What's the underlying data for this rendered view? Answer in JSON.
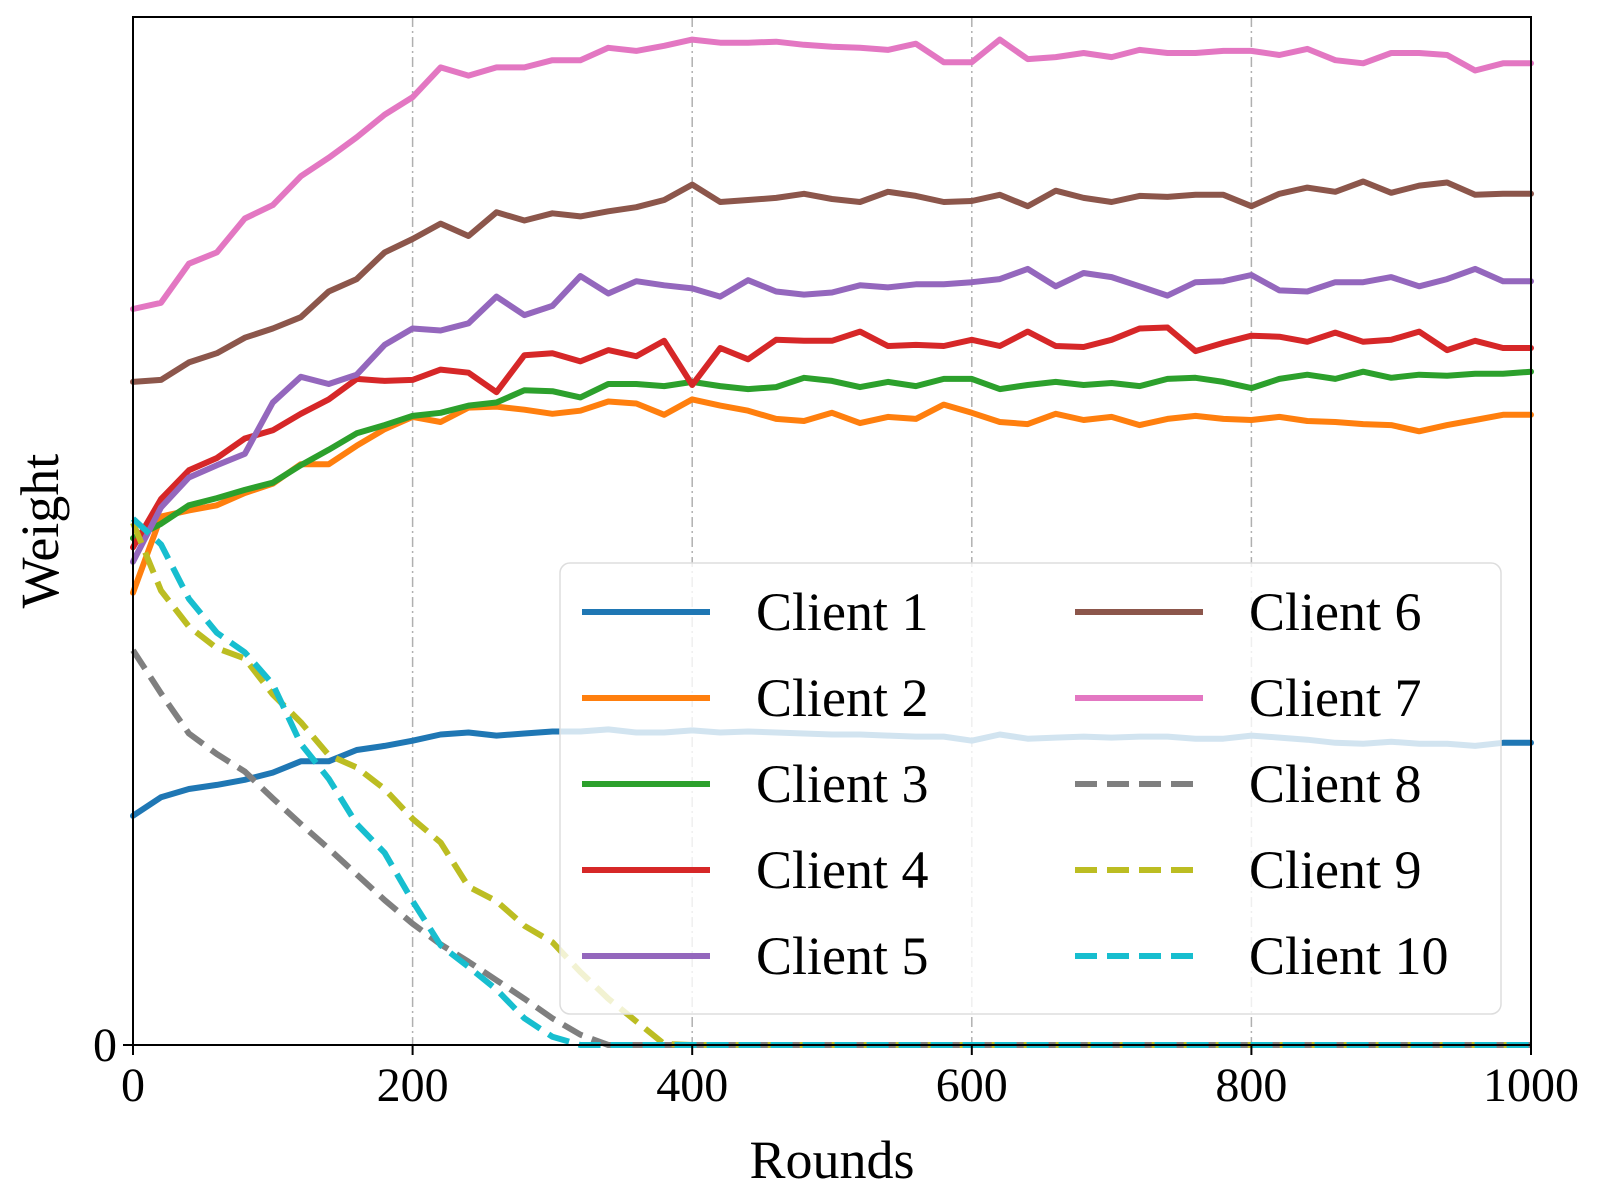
{
  "chart_data": {
    "type": "line",
    "title": "",
    "xlabel": "Rounds",
    "ylabel": "Weight",
    "xlim": [
      0,
      1000
    ],
    "ylim": [
      0,
      1
    ],
    "x_ticks": [
      0,
      200,
      400,
      600,
      800,
      1000
    ],
    "y_ticks": [
      0
    ],
    "grid": "vertical dash-dot",
    "legend_position": "lower-right",
    "legend_columns": 2,
    "x": [
      0,
      20,
      40,
      60,
      80,
      100,
      120,
      140,
      160,
      180,
      200,
      220,
      240,
      260,
      280,
      300,
      320,
      340,
      360,
      380,
      400,
      420,
      440,
      460,
      480,
      500,
      520,
      540,
      560,
      580,
      600,
      620,
      640,
      660,
      680,
      700,
      720,
      740,
      760,
      780,
      800,
      820,
      840,
      860,
      880,
      900,
      920,
      940,
      960,
      980,
      1000
    ],
    "series": [
      {
        "name": "Client 1",
        "color": "#1f77b4",
        "dash": "solid",
        "values": [
          0.223,
          0.241,
          0.249,
          0.253,
          0.258,
          0.265,
          0.276,
          0.276,
          0.287,
          0.291,
          0.296,
          0.302,
          0.304,
          0.301,
          0.303,
          0.305,
          0.305,
          0.307,
          0.304,
          0.304,
          0.306,
          0.304,
          0.305,
          0.304,
          0.303,
          0.302,
          0.302,
          0.301,
          0.3,
          0.3,
          0.296,
          0.302,
          0.298,
          0.299,
          0.3,
          0.299,
          0.3,
          0.3,
          0.298,
          0.298,
          0.301,
          0.299,
          0.297,
          0.294,
          0.293,
          0.295,
          0.293,
          0.293,
          0.291,
          0.294,
          0.294
        ]
      },
      {
        "name": "Client 2",
        "color": "#ff7f0e",
        "dash": "solid",
        "values": [
          0.44,
          0.514,
          0.52,
          0.525,
          0.537,
          0.546,
          0.565,
          0.565,
          0.583,
          0.599,
          0.611,
          0.606,
          0.62,
          0.621,
          0.618,
          0.614,
          0.617,
          0.626,
          0.624,
          0.613,
          0.628,
          0.622,
          0.617,
          0.609,
          0.607,
          0.615,
          0.605,
          0.611,
          0.609,
          0.623,
          0.615,
          0.606,
          0.604,
          0.614,
          0.608,
          0.611,
          0.603,
          0.609,
          0.612,
          0.609,
          0.608,
          0.611,
          0.607,
          0.606,
          0.604,
          0.603,
          0.597,
          0.603,
          0.608,
          0.613,
          0.613
        ]
      },
      {
        "name": "Client 3",
        "color": "#2ca02c",
        "dash": "solid",
        "values": [
          0.493,
          0.507,
          0.525,
          0.532,
          0.54,
          0.547,
          0.564,
          0.579,
          0.595,
          0.603,
          0.612,
          0.615,
          0.622,
          0.625,
          0.637,
          0.636,
          0.63,
          0.643,
          0.643,
          0.641,
          0.645,
          0.641,
          0.638,
          0.64,
          0.649,
          0.646,
          0.64,
          0.645,
          0.641,
          0.648,
          0.648,
          0.638,
          0.642,
          0.645,
          0.642,
          0.644,
          0.641,
          0.648,
          0.649,
          0.645,
          0.639,
          0.648,
          0.652,
          0.648,
          0.655,
          0.649,
          0.652,
          0.651,
          0.653,
          0.653,
          0.655
        ]
      },
      {
        "name": "Client 4",
        "color": "#d62728",
        "dash": "solid",
        "values": [
          0.484,
          0.531,
          0.559,
          0.571,
          0.59,
          0.598,
          0.614,
          0.628,
          0.648,
          0.646,
          0.647,
          0.657,
          0.654,
          0.635,
          0.671,
          0.673,
          0.665,
          0.676,
          0.67,
          0.685,
          0.642,
          0.678,
          0.667,
          0.686,
          0.685,
          0.685,
          0.694,
          0.68,
          0.681,
          0.68,
          0.686,
          0.68,
          0.694,
          0.68,
          0.679,
          0.686,
          0.697,
          0.698,
          0.675,
          0.683,
          0.69,
          0.689,
          0.684,
          0.693,
          0.684,
          0.686,
          0.694,
          0.676,
          0.685,
          0.678,
          0.678
        ]
      },
      {
        "name": "Client 5",
        "color": "#9467bd",
        "dash": "solid",
        "values": [
          0.47,
          0.523,
          0.552,
          0.564,
          0.575,
          0.625,
          0.65,
          0.643,
          0.652,
          0.681,
          0.697,
          0.695,
          0.702,
          0.728,
          0.71,
          0.719,
          0.748,
          0.731,
          0.743,
          0.739,
          0.736,
          0.728,
          0.744,
          0.733,
          0.73,
          0.732,
          0.739,
          0.737,
          0.74,
          0.74,
          0.742,
          0.745,
          0.755,
          0.738,
          0.751,
          0.747,
          0.738,
          0.729,
          0.742,
          0.743,
          0.749,
          0.734,
          0.733,
          0.742,
          0.742,
          0.747,
          0.738,
          0.745,
          0.755,
          0.743,
          0.743
        ]
      },
      {
        "name": "Client 6",
        "color": "#8c564b",
        "dash": "solid",
        "values": [
          0.645,
          0.647,
          0.664,
          0.673,
          0.688,
          0.697,
          0.708,
          0.733,
          0.745,
          0.771,
          0.784,
          0.799,
          0.787,
          0.81,
          0.802,
          0.809,
          0.806,
          0.811,
          0.815,
          0.822,
          0.837,
          0.82,
          0.822,
          0.824,
          0.828,
          0.823,
          0.82,
          0.83,
          0.826,
          0.82,
          0.821,
          0.827,
          0.816,
          0.831,
          0.824,
          0.82,
          0.826,
          0.825,
          0.827,
          0.827,
          0.816,
          0.828,
          0.834,
          0.83,
          0.84,
          0.829,
          0.836,
          0.839,
          0.827,
          0.828,
          0.828
        ]
      },
      {
        "name": "Client 7",
        "color": "#e377c2",
        "dash": "solid",
        "values": [
          0.716,
          0.722,
          0.76,
          0.771,
          0.804,
          0.817,
          0.845,
          0.863,
          0.883,
          0.905,
          0.922,
          0.951,
          0.943,
          0.951,
          0.951,
          0.958,
          0.958,
          0.97,
          0.967,
          0.972,
          0.978,
          0.975,
          0.975,
          0.976,
          0.973,
          0.971,
          0.97,
          0.968,
          0.974,
          0.956,
          0.956,
          0.978,
          0.959,
          0.961,
          0.965,
          0.961,
          0.968,
          0.965,
          0.965,
          0.967,
          0.967,
          0.963,
          0.969,
          0.958,
          0.955,
          0.965,
          0.965,
          0.963,
          0.948,
          0.955,
          0.955
        ]
      },
      {
        "name": "Client 8",
        "color": "#7f7f7f",
        "dash": "dashed",
        "values": [
          0.384,
          0.342,
          0.303,
          0.283,
          0.266,
          0.24,
          0.215,
          0.191,
          0.166,
          0.141,
          0.118,
          0.098,
          0.081,
          0.063,
          0.045,
          0.026,
          0.01,
          0.0,
          0.0,
          0.0,
          0.0,
          0.0,
          0.0,
          0.0,
          0.0,
          0.0,
          0.0,
          0.0,
          0.0,
          0.0,
          0.0,
          0.0,
          0.0,
          0.0,
          0.0,
          0.0,
          0.0,
          0.0,
          0.0,
          0.0,
          0.0,
          0.0,
          0.0,
          0.0,
          0.0,
          0.0,
          0.0,
          0.0,
          0.0,
          0.0,
          0.0
        ]
      },
      {
        "name": "Client 9",
        "color": "#bcbd22",
        "dash": "dashed",
        "values": [
          0.508,
          0.442,
          0.407,
          0.386,
          0.376,
          0.341,
          0.314,
          0.282,
          0.27,
          0.249,
          0.22,
          0.197,
          0.154,
          0.14,
          0.116,
          0.1,
          0.071,
          0.045,
          0.023,
          0.001,
          0.0,
          0.0,
          0.0,
          0.0,
          0.0,
          0.0,
          0.0,
          0.0,
          0.0,
          0.0,
          0.0,
          0.0,
          0.0,
          0.0,
          0.0,
          0.0,
          0.0,
          0.0,
          0.0,
          0.0,
          0.0,
          0.0,
          0.0,
          0.0,
          0.0,
          0.0,
          0.0,
          0.0,
          0.0,
          0.0,
          0.0
        ]
      },
      {
        "name": "Client 10",
        "color": "#17becf",
        "dash": "dashed",
        "values": [
          0.512,
          0.487,
          0.434,
          0.401,
          0.382,
          0.351,
          0.293,
          0.259,
          0.215,
          0.187,
          0.14,
          0.097,
          0.076,
          0.054,
          0.026,
          0.008,
          0.0,
          0.0,
          0.0,
          0.0,
          0.0,
          0.0,
          0.0,
          0.0,
          0.0,
          0.0,
          0.0,
          0.0,
          0.0,
          0.0,
          0.0,
          0.0,
          0.0,
          0.0,
          0.0,
          0.0,
          0.0,
          0.0,
          0.0,
          0.0,
          0.0,
          0.0,
          0.0,
          0.0,
          0.0,
          0.0,
          0.0,
          0.0,
          0.0,
          0.0,
          0.0
        ]
      }
    ]
  }
}
